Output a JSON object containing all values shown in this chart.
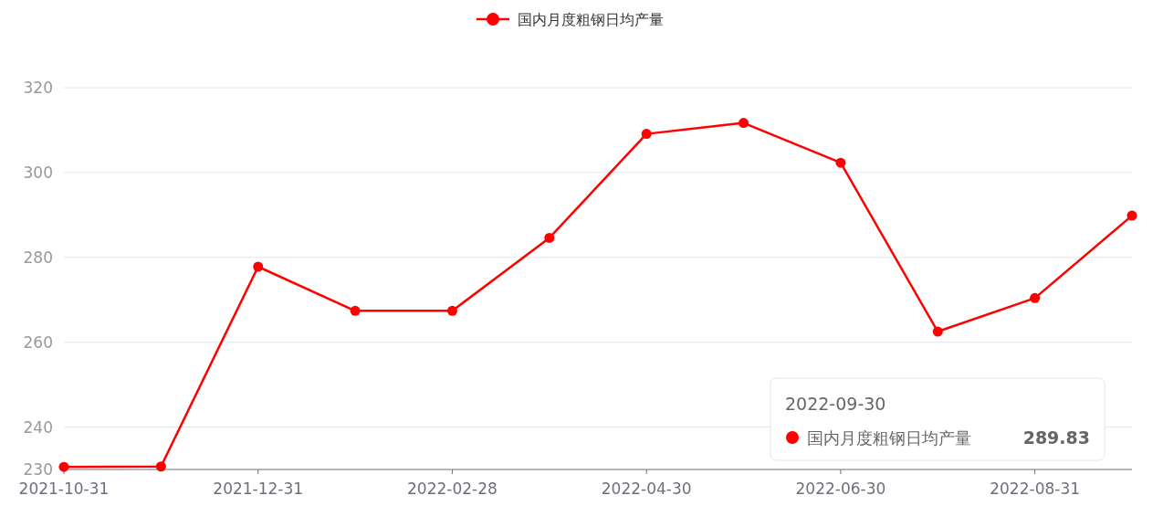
{
  "chart_data": {
    "type": "line",
    "categories": [
      "2021-10-31",
      null,
      "2021-12-31",
      null,
      "2022-02-28",
      null,
      "2022-04-30",
      null,
      "2022-06-30",
      null,
      "2022-08-31",
      null
    ],
    "series": [
      {
        "name": "国内月度粗钢日均产量",
        "color": "#ff0000",
        "values": [
          230.6,
          230.7,
          277.8,
          267.4,
          267.4,
          284.6,
          309.1,
          311.7,
          302.3,
          262.5,
          270.4,
          289.83
        ]
      }
    ],
    "ylim": [
      230,
      320
    ],
    "yticks": [
      230,
      240,
      260,
      280,
      300,
      320
    ],
    "grid": "y",
    "legend": "top",
    "marker": "circle",
    "line_style": "solid",
    "annotations": [
      "2022-09-30",
      "国内月度粗钢日均产量 289.83"
    ]
  }
}
